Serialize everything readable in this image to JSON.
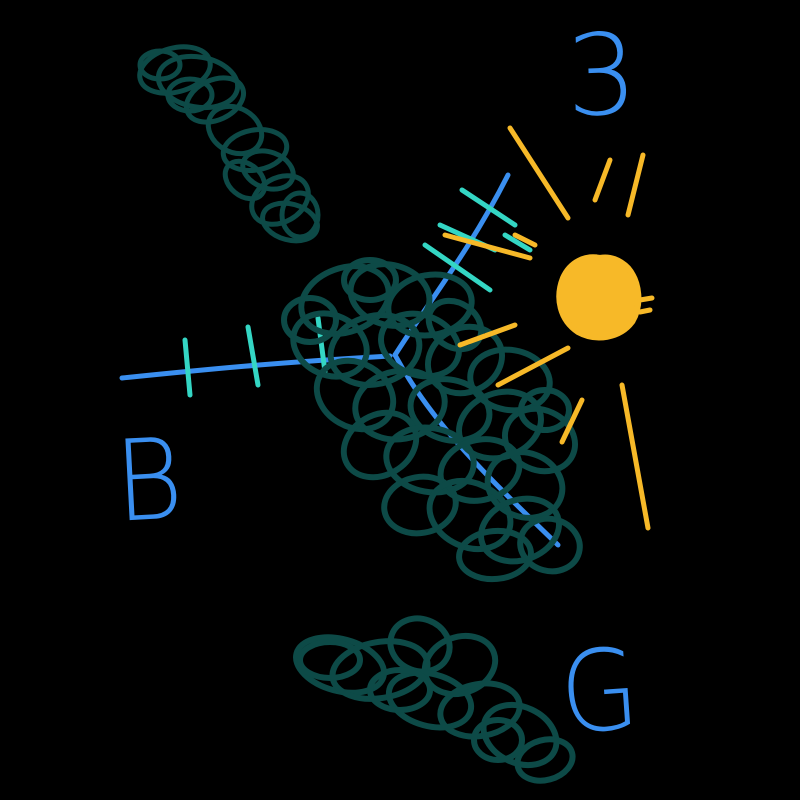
{
  "labels": {
    "top_right": "3",
    "left": "B",
    "bottom_right": "G"
  },
  "colors": {
    "background": "#000000",
    "scribble_teal": "#0d4a47",
    "line_blue": "#3a8ff0",
    "tick_cyan": "#34d6c4",
    "sun_yellow": "#f7b928"
  },
  "icons": {
    "sun": "sun-icon",
    "cloud": "cloud-scribble"
  }
}
